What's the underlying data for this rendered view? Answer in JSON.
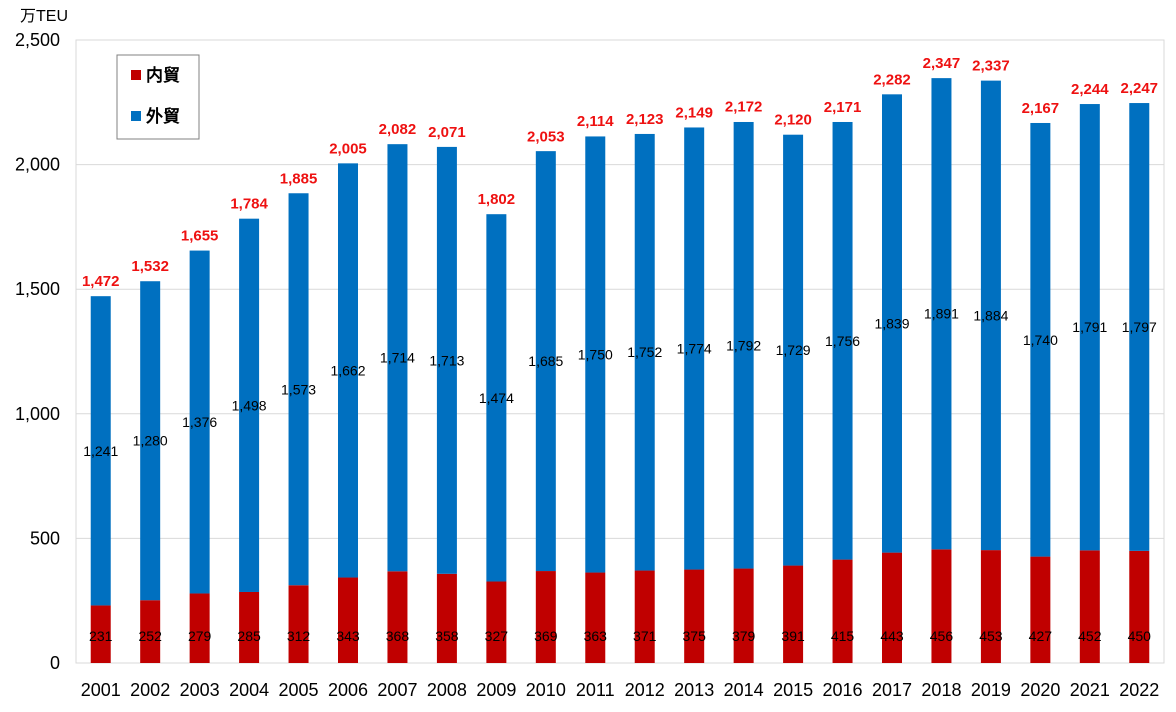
{
  "chart_data": {
    "type": "bar",
    "stacked": true,
    "ylabel": "万TEU",
    "ylim": [
      0,
      2500
    ],
    "yticks": [
      "0",
      "500",
      "1,000",
      "1,500",
      "2,000",
      "2,500"
    ],
    "ytick_values": [
      0,
      500,
      1000,
      1500,
      2000,
      2500
    ],
    "grid": true,
    "legend_position": "top-left",
    "categories": [
      "2001",
      "2002",
      "2003",
      "2004",
      "2005",
      "2006",
      "2007",
      "2008",
      "2009",
      "2010",
      "2011",
      "2012",
      "2013",
      "2014",
      "2015",
      "2016",
      "2017",
      "2018",
      "2019",
      "2020",
      "2021",
      "2022"
    ],
    "series": [
      {
        "name": "内貿",
        "color": "#c00000",
        "values": [
          231,
          252,
          279,
          285,
          312,
          343,
          368,
          358,
          327,
          369,
          363,
          371,
          375,
          379,
          391,
          415,
          443,
          456,
          453,
          427,
          452,
          450
        ],
        "labels": [
          "231",
          "252",
          "279",
          "285",
          "312",
          "343",
          "368",
          "358",
          "327",
          "369",
          "363",
          "371",
          "375",
          "379",
          "391",
          "415",
          "443",
          "456",
          "453",
          "427",
          "452",
          "450"
        ]
      },
      {
        "name": "外貿",
        "color": "#0070c0",
        "values": [
          1241,
          1280,
          1376,
          1498,
          1573,
          1662,
          1714,
          1713,
          1474,
          1685,
          1750,
          1752,
          1774,
          1792,
          1729,
          1756,
          1839,
          1891,
          1884,
          1740,
          1791,
          1797
        ],
        "labels": [
          "1,241",
          "1,280",
          "1,376",
          "1,498",
          "1,573",
          "1,662",
          "1,714",
          "1,713",
          "1,474",
          "1,685",
          "1,750",
          "1,752",
          "1,774",
          "1,792",
          "1,729",
          "1,756",
          "1,839",
          "1,891",
          "1,884",
          "1,740",
          "1,791",
          "1,797"
        ]
      }
    ],
    "totals": [
      1472,
      1532,
      1655,
      1784,
      1885,
      2005,
      2082,
      2071,
      1802,
      2053,
      2114,
      2123,
      2149,
      2172,
      2120,
      2171,
      2282,
      2347,
      2337,
      2167,
      2244,
      2247
    ],
    "total_labels": [
      "1,472",
      "1,532",
      "1,655",
      "1,784",
      "1,885",
      "2,005",
      "2,082",
      "2,071",
      "1,802",
      "2,053",
      "2,114",
      "2,123",
      "2,149",
      "2,172",
      "2,120",
      "2,171",
      "2,282",
      "2,347",
      "2,337",
      "2,167",
      "2,244",
      "2,247"
    ],
    "total_label_color": "#ee1111"
  }
}
